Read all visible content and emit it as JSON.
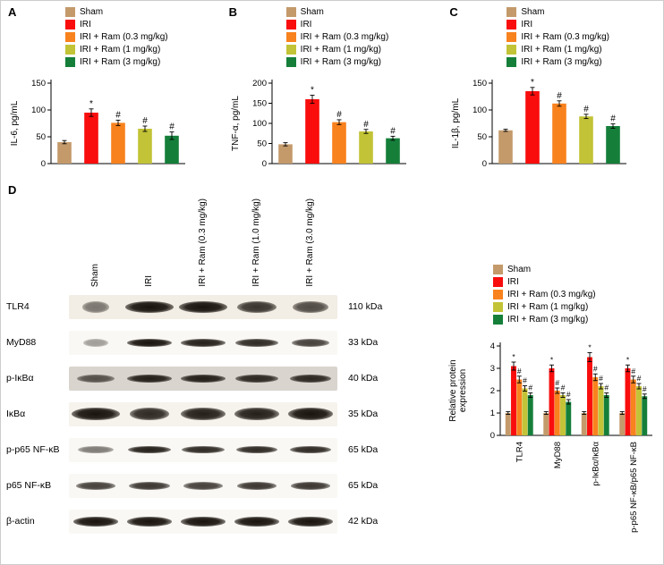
{
  "panel_letters": {
    "A": "A",
    "B": "B",
    "C": "C",
    "D": "D"
  },
  "colors": {
    "sham": "#C49A6B",
    "iri": "#F90D0D",
    "ram03": "#F8821E",
    "ram1": "#C2C336",
    "ram3": "#157F3A",
    "axis": "#000000"
  },
  "legend_items": [
    {
      "label": "Sham",
      "colorKey": "sham"
    },
    {
      "label": "IRI",
      "colorKey": "iri"
    },
    {
      "label": "IRI + Ram (0.3 mg/kg)",
      "colorKey": "ram03"
    },
    {
      "label": "IRI + Ram (1 mg/kg)",
      "colorKey": "ram1"
    },
    {
      "label": "IRI + Ram (3 mg/kg)",
      "colorKey": "ram3"
    }
  ],
  "chart_data": [
    {
      "id": "A",
      "type": "bar",
      "ylabel": "IL-6, pg/mL",
      "ylim": [
        0,
        150
      ],
      "yticks": [
        0,
        50,
        100,
        150
      ],
      "categories": [
        "Sham",
        "IRI",
        "IRI + Ram (0.3 mg/kg)",
        "IRI + Ram (1 mg/kg)",
        "IRI + Ram (3 mg/kg)"
      ],
      "values": [
        40,
        95,
        76,
        65,
        52
      ],
      "errors": [
        3,
        7,
        5,
        5,
        7
      ],
      "annotations": [
        "",
        "*",
        "#",
        "#",
        "#"
      ]
    },
    {
      "id": "B",
      "type": "bar",
      "ylabel": "TNF-α, pg/mL",
      "ylim": [
        0,
        200
      ],
      "yticks": [
        0,
        50,
        100,
        150,
        200
      ],
      "categories": [
        "Sham",
        "IRI",
        "IRI + Ram (0.3 mg/kg)",
        "IRI + Ram (1 mg/kg)",
        "IRI + Ram (3 mg/kg)"
      ],
      "values": [
        48,
        160,
        103,
        80,
        63
      ],
      "errors": [
        4,
        10,
        6,
        5,
        5
      ],
      "annotations": [
        "",
        "*",
        "#",
        "#",
        "#"
      ]
    },
    {
      "id": "C",
      "type": "bar",
      "ylabel": "IL-1β, pg/mL",
      "ylim": [
        0,
        150
      ],
      "yticks": [
        0,
        50,
        100,
        150
      ],
      "categories": [
        "Sham",
        "IRI",
        "IRI + Ram (0.3 mg/kg)",
        "IRI + Ram (1 mg/kg)",
        "IRI + Ram (3 mg/kg)"
      ],
      "values": [
        62,
        135,
        112,
        88,
        70
      ],
      "errors": [
        2,
        7,
        5,
        4,
        4
      ],
      "annotations": [
        "",
        "*",
        "#",
        "#",
        "#"
      ]
    },
    {
      "id": "D",
      "type": "grouped-bar",
      "ylabel": "Relative protein\nexpression",
      "ylim": [
        0,
        4
      ],
      "yticks": [
        0,
        1,
        2,
        3,
        4
      ],
      "categories": [
        "TLR4",
        "MyD88",
        "p-IκBα/IκBα",
        "p-p65 NF-κB/p65 NF-κB"
      ],
      "series": [
        {
          "name": "Sham",
          "colorKey": "sham",
          "values": [
            1.0,
            1.0,
            1.0,
            1.0
          ],
          "errors": [
            0.06,
            0.06,
            0.06,
            0.06
          ],
          "annotations": [
            "",
            "",
            "",
            ""
          ]
        },
        {
          "name": "IRI",
          "colorKey": "iri",
          "values": [
            3.1,
            3.0,
            3.5,
            3.0
          ],
          "errors": [
            0.18,
            0.15,
            0.2,
            0.15
          ],
          "annotations": [
            "*",
            "*",
            "*",
            "*"
          ]
        },
        {
          "name": "IRI + Ram (0.3 mg/kg)",
          "colorKey": "ram03",
          "values": [
            2.5,
            2.0,
            2.6,
            2.5
          ],
          "errors": [
            0.15,
            0.12,
            0.15,
            0.15
          ],
          "annotations": [
            "#",
            "#",
            "#",
            "#"
          ]
        },
        {
          "name": "IRI + Ram (1 mg/kg)",
          "colorKey": "ram1",
          "values": [
            2.1,
            1.8,
            2.2,
            2.2
          ],
          "errors": [
            0.12,
            0.1,
            0.12,
            0.12
          ],
          "annotations": [
            "#",
            "#",
            "#",
            "#"
          ]
        },
        {
          "name": "IRI + Ram (3 mg/kg)",
          "colorKey": "ram3",
          "values": [
            1.8,
            1.5,
            1.8,
            1.75
          ],
          "errors": [
            0.1,
            0.1,
            0.1,
            0.1
          ],
          "annotations": [
            "#",
            "#",
            "#",
            "#"
          ]
        }
      ]
    }
  ],
  "blot": {
    "column_labels": [
      "Sham",
      "IRI",
      "IRI + Ram (0.3 mg/kg)",
      "IRI + Ram (1.0 mg/kg)",
      "IRI + Ram (3.0 mg/kg)"
    ],
    "rows": [
      {
        "label": "TLR4",
        "kda": "110 kDa",
        "bg": "#f2ede5",
        "band_h": 13,
        "bands": [
          [
            0.55,
            0.55
          ],
          [
            0.95,
            1
          ],
          [
            0.95,
            1
          ],
          [
            0.8,
            0.85
          ],
          [
            0.7,
            0.75
          ]
        ]
      },
      {
        "label": "MyD88",
        "kda": "33 kDa",
        "bg": "#faf8f4",
        "band_h": 9,
        "bands": [
          [
            0.5,
            0.4
          ],
          [
            0.9,
            1
          ],
          [
            0.88,
            0.95
          ],
          [
            0.85,
            0.9
          ],
          [
            0.75,
            0.8
          ]
        ]
      },
      {
        "label": "p-IκBα",
        "kda": "40 kDa",
        "bg": "#d9d5ce",
        "band_h": 9,
        "bands": [
          [
            0.75,
            0.7
          ],
          [
            0.88,
            0.95
          ],
          [
            0.88,
            0.95
          ],
          [
            0.85,
            0.9
          ],
          [
            0.82,
            0.9
          ]
        ]
      },
      {
        "label": "IκBα",
        "kda": "35 kDa",
        "bg": "#f6f3ed",
        "band_h": 14,
        "bands": [
          [
            0.95,
            1
          ],
          [
            0.8,
            0.9
          ],
          [
            0.88,
            0.95
          ],
          [
            0.88,
            0.95
          ],
          [
            0.9,
            1
          ]
        ]
      },
      {
        "label": "p-p65 NF-κB",
        "kda": "65 kDa",
        "bg": "#faf8f4",
        "band_h": 8,
        "bands": [
          [
            0.7,
            0.55
          ],
          [
            0.85,
            0.95
          ],
          [
            0.85,
            0.9
          ],
          [
            0.82,
            0.9
          ],
          [
            0.82,
            0.9
          ]
        ]
      },
      {
        "label": "p65 NF-κB",
        "kda": "65 kDa",
        "bg": "#faf8f4",
        "band_h": 9,
        "bands": [
          [
            0.8,
            0.8
          ],
          [
            0.82,
            0.85
          ],
          [
            0.8,
            0.8
          ],
          [
            0.8,
            0.85
          ],
          [
            0.8,
            0.85
          ]
        ]
      },
      {
        "label": "β-actin",
        "kda": "42 kDa",
        "bg": "#faf8f4",
        "band_h": 11,
        "bands": [
          [
            0.9,
            1
          ],
          [
            0.9,
            1
          ],
          [
            0.9,
            1
          ],
          [
            0.9,
            1
          ],
          [
            0.9,
            1
          ]
        ]
      }
    ]
  }
}
